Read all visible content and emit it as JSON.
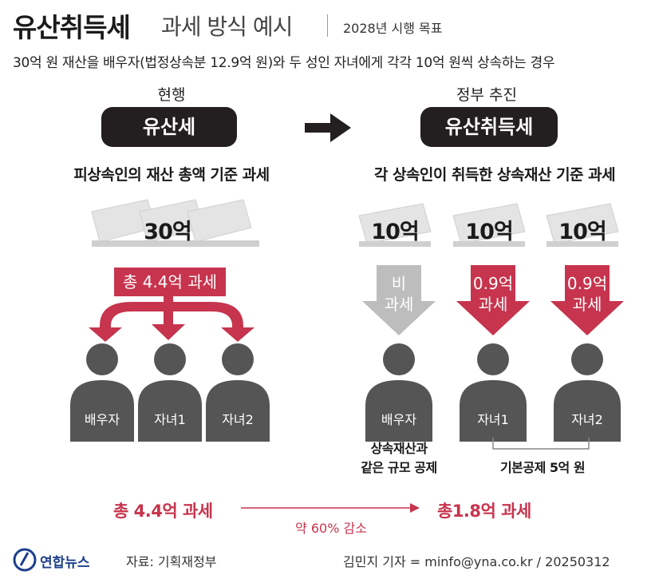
{
  "header": {
    "title_main": "유산취득세",
    "title_sub": "과세 방식 예시",
    "target_year": "2028년 시행 목표",
    "subtitle": "30억 원 재산을 배우자(법정상속분 12.9억 원)와 두 성인 자녀에게 각각 10억 원씩 상속하는 경우"
  },
  "current": {
    "label": "현행",
    "pill": "유산세",
    "description": "피상속인의 재산 총액 기준 과세",
    "money": "30억",
    "tax": "총 4.4억 과세",
    "persons": [
      "배우자",
      "자녀1",
      "자녀2"
    ]
  },
  "proposed": {
    "label": "정부 추진",
    "pill": "유산취득세",
    "description": "각 상속인이 취득한 상속재산 기준 과세",
    "money": [
      "10억",
      "10억",
      "10억"
    ],
    "taxes": [
      {
        "line1": "비",
        "line2": "과세",
        "color": "#bdbdbd"
      },
      {
        "line1": "0.9억",
        "line2": "과세",
        "color": "#c7344d"
      },
      {
        "line1": "0.9억",
        "line2": "과세",
        "color": "#c7344d"
      }
    ],
    "persons": [
      "배우자",
      "자녀1",
      "자녀2"
    ],
    "note_spouse_line1": "상속재산과",
    "note_spouse_line2": "같은 규모 공제",
    "note_children": "기본공제 5억 원"
  },
  "summary": {
    "current_total": "총 4.4억 과세",
    "reduction": "약 60% 감소",
    "proposed_total": "총1.8억 과세"
  },
  "footer": {
    "logo": "연합뉴스",
    "source": "자료: 기획재정부",
    "credit": "김민지 기자 = minfo@yna.co.kr / 20250312"
  },
  "colors": {
    "accent_red": "#c7344d",
    "dark": "#231f20",
    "person_gray": "#555555",
    "money_gray": "#e2e2e2"
  }
}
